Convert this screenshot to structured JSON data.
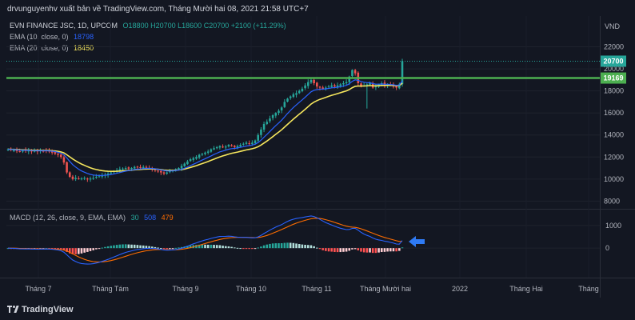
{
  "header": {
    "title": "drvunguyenhv xuất bản về TradingView.com, Tháng Mười hai 08, 2021 21:58 UTC+7"
  },
  "legend": {
    "symbol": "EVN FINANCE JSC, 1D, UPCOM",
    "ohlc": {
      "o": "O18800",
      "h": "H20700",
      "l": "L18600",
      "c": "C20700",
      "chg": "+2100 (+11.29%)"
    },
    "ema10": {
      "label": "EMA (10, close, 0)",
      "value": "18798"
    },
    "ema20": {
      "label": "EMA (20, close, 0)",
      "value": "18450"
    },
    "macd": {
      "label": "MACD (12, 26, close, 9, EMA, EMA)",
      "v1": "30",
      "v2": "508",
      "v3": "479"
    }
  },
  "footer": {
    "brand": "TradingView"
  },
  "colors": {
    "bg": "#131722",
    "up": "#26a69a",
    "down": "#ef5350",
    "ema10": "#2962ff",
    "ema20": "#f5e65d",
    "hline": "#4caf50",
    "macd": "#2962ff",
    "signal": "#ff6d00",
    "arrow": "#2f7bf5"
  },
  "chart_data": [
    {
      "type": "candlestick",
      "currency": "VND",
      "y_ticks": [
        8000,
        10000,
        12000,
        14000,
        16000,
        18000,
        20000,
        22000
      ],
      "ylim": [
        7300,
        24800
      ],
      "x_ticks": [
        "Tháng 7",
        "Tháng Tám",
        "Tháng 9",
        "Tháng 10",
        "Tháng 11",
        "Tháng Mười hai",
        "2022",
        "Tháng Hai",
        "Tháng"
      ],
      "horizontal_line": {
        "value": 19169,
        "label": "19169"
      },
      "last_price": {
        "value": 20700,
        "label": "20700"
      },
      "close_series": [
        12700,
        12650,
        12600,
        12550,
        12500,
        12600,
        12550,
        12600,
        12500,
        12550,
        12500,
        12600,
        12550,
        12600,
        12500,
        12400,
        12300,
        12200,
        12000,
        11500,
        10600,
        10200,
        10000,
        10100,
        10000,
        10050,
        10100,
        10000,
        10050,
        10100,
        10200,
        10250,
        10350,
        10400,
        10500,
        10600,
        10700,
        10800,
        10900,
        10950,
        11000,
        10950,
        11000,
        11100,
        11050,
        11000,
        11100,
        11050,
        11000,
        10900,
        10800,
        10700,
        10600,
        10500,
        10600,
        10700,
        10800,
        10900,
        11000,
        11200,
        11400,
        11600,
        11800,
        11900,
        12000,
        12200,
        12300,
        12400,
        12500,
        12700,
        12800,
        12900,
        13000,
        12900,
        12950,
        13100,
        13000,
        12900,
        13000,
        13100,
        13200,
        13300,
        13200,
        13300,
        13500,
        14000,
        14500,
        15000,
        15200,
        15500,
        15800,
        16000,
        16200,
        16500,
        17000,
        17300,
        17500,
        17700,
        17800,
        18000,
        18200,
        18500,
        18800,
        19000,
        18700,
        18400,
        18300,
        18200,
        18300,
        18400,
        18500,
        18400,
        18500,
        18600,
        18700,
        18800,
        19300,
        19900,
        19600,
        18700,
        18400,
        18500,
        18600,
        18700,
        18300,
        18400,
        18600,
        18700,
        18500,
        18600,
        18500,
        18400,
        18300,
        18600,
        20700
      ]
    },
    {
      "type": "line",
      "name": "MACD",
      "y_ticks": [
        0,
        1000
      ],
      "ylim": [
        -1300,
        1700
      ]
    }
  ]
}
